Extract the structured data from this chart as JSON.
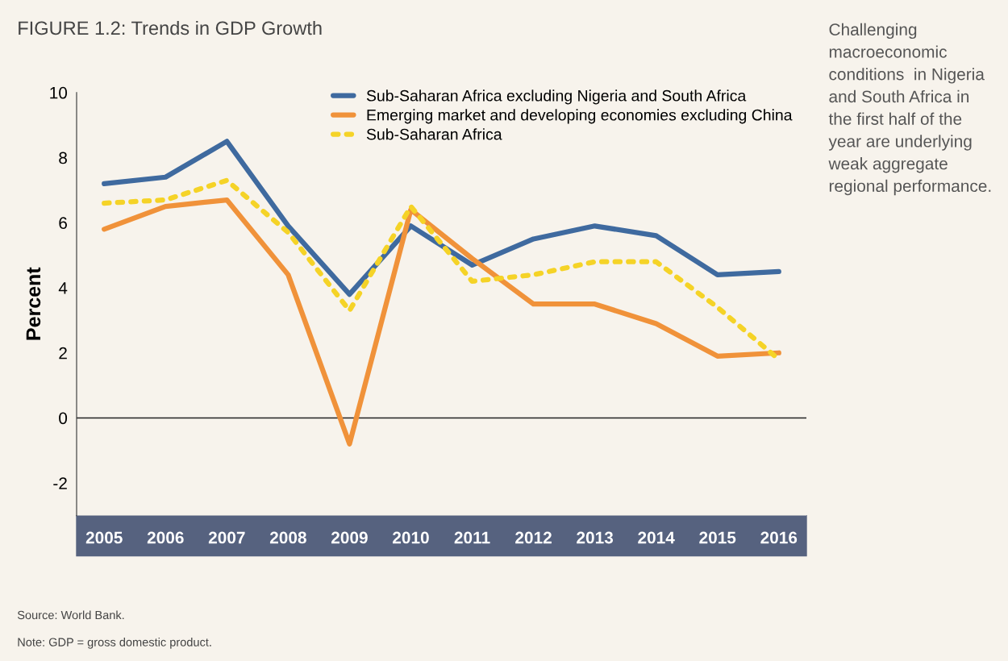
{
  "chart_data": {
    "type": "line",
    "title": "FIGURE 1.2: Trends in GDP Growth",
    "ylabel": "Percent",
    "categories": [
      "2005",
      "2006",
      "2007",
      "2008",
      "2009",
      "2010",
      "2011",
      "2012",
      "2013",
      "2014",
      "2015",
      "2016"
    ],
    "series": [
      {
        "name": "Sub-Saharan Africa excluding Nigeria and South Africa",
        "color": "#3f6a9f",
        "line_style": "solid",
        "values": [
          7.2,
          7.4,
          8.5,
          5.9,
          3.8,
          5.9,
          4.7,
          5.5,
          5.9,
          5.6,
          4.4,
          4.5
        ]
      },
      {
        "name": "Emerging market and developing economies excluding China",
        "color": "#f0923a",
        "line_style": "solid",
        "values": [
          5.8,
          6.5,
          6.7,
          4.4,
          -0.8,
          6.4,
          4.9,
          3.5,
          3.5,
          2.9,
          1.9,
          2.0
        ]
      },
      {
        "name": "Sub-Saharan Africa",
        "color": "#f5d327",
        "line_style": "dotted",
        "values": [
          6.6,
          6.7,
          7.3,
          5.7,
          3.3,
          6.5,
          4.2,
          4.4,
          4.8,
          4.8,
          3.4,
          1.8
        ]
      }
    ],
    "ylim": [
      -3,
      10
    ],
    "yticks": [
      -2,
      0,
      2,
      4,
      6,
      8,
      10
    ],
    "ref_lines": [
      {
        "axis": "y",
        "value": 0,
        "color": "#222222"
      }
    ],
    "grid": false,
    "legend": "top right",
    "marker": "none",
    "annotations": [
      "Challenging\nmacroeconomic\nconditions  in Nigeria\nand South Africa in\nthe first half of the\nyear are underlying\nweak aggregate\nregional performance.",
      "Source: World Bank.",
      "Note: GDP = gross domestic product."
    ]
  }
}
